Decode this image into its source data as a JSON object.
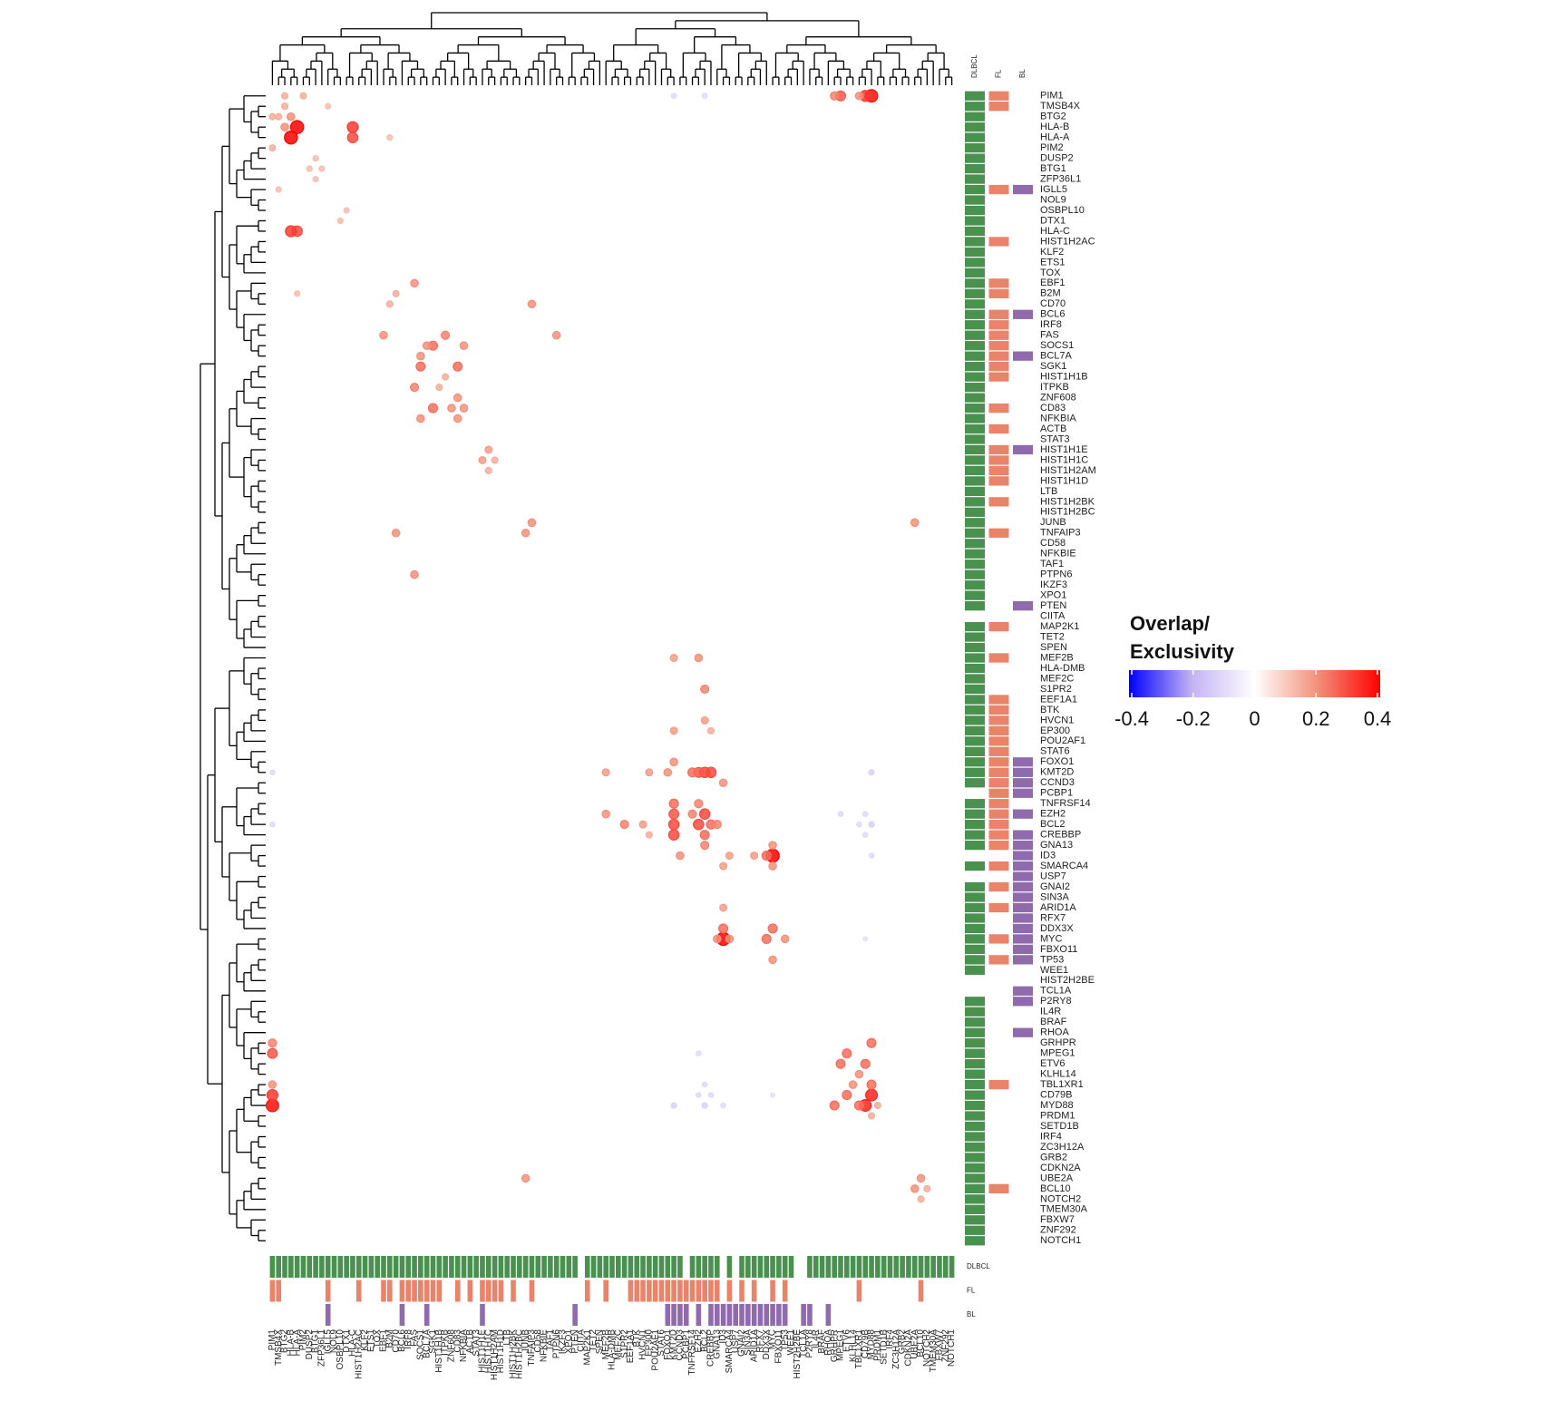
{
  "chart_data": {
    "type": "dotmatrix",
    "genes": [
      "PIM1",
      "TMSB4X",
      "BTG2",
      "HLA-B",
      "HLA-A",
      "PIM2",
      "DUSP2",
      "BTG1",
      "ZFP36L1",
      "IGLL5",
      "NOL9",
      "OSBPL10",
      "DTX1",
      "HLA-C",
      "HIST1H2AC",
      "KLF2",
      "ETS1",
      "TOX",
      "EBF1",
      "B2M",
      "CD70",
      "BCL6",
      "IRF8",
      "FAS",
      "SOCS1",
      "BCL7A",
      "SGK1",
      "HIST1H1B",
      "ITPKB",
      "ZNF608",
      "CD83",
      "NFKBIA",
      "ACTB",
      "STAT3",
      "HIST1H1E",
      "HIST1H1C",
      "HIST1H2AM",
      "HIST1H1D",
      "LTB",
      "HIST1H2BK",
      "HIST1H2BC",
      "JUNB",
      "TNFAIP3",
      "CD58",
      "NFKBIE",
      "TAF1",
      "PTPN6",
      "IKZF3",
      "XPO1",
      "PTEN",
      "CIITA",
      "MAP2K1",
      "TET2",
      "SPEN",
      "MEF2B",
      "HLA-DMB",
      "MEF2C",
      "S1PR2",
      "EEF1A1",
      "BTK",
      "HVCN1",
      "EP300",
      "POU2AF1",
      "STAT6",
      "FOXO1",
      "KMT2D",
      "CCND3",
      "PCBP1",
      "TNFRSF14",
      "EZH2",
      "BCL2",
      "CREBBP",
      "GNA13",
      "ID3",
      "SMARCA4",
      "USP7",
      "GNAI2",
      "SIN3A",
      "ARID1A",
      "RFX7",
      "DDX3X",
      "MYC",
      "FBXO11",
      "TP53",
      "WEE1",
      "HIST2H2BE",
      "TCL1A",
      "P2RY8",
      "IL4R",
      "BRAF",
      "RHOA",
      "GRHPR",
      "MPEG1",
      "ETV6",
      "KLHL14",
      "TBL1XR1",
      "CD79B",
      "MYD88",
      "PRDM1",
      "SETD1B",
      "IRF4",
      "ZC3H12A",
      "GRB2",
      "CDKN2A",
      "UBE2A",
      "BCL10",
      "NOTCH2",
      "TMEM30A",
      "FBXW7",
      "ZNF292",
      "NOTCH1"
    ],
    "cells": [
      {
        "row": "PIM1",
        "col": "MYD88",
        "value": 0.38
      },
      {
        "row": "PIM1",
        "col": "CD79B",
        "value": 0.32
      },
      {
        "row": "PIM1",
        "col": "MPEG1",
        "value": 0.28
      },
      {
        "row": "PIM1",
        "col": "GRHPR",
        "value": 0.22
      },
      {
        "row": "PIM1",
        "col": "TBL1XR1",
        "value": 0.2
      },
      {
        "row": "PIM1",
        "col": "PIM2",
        "value": 0.15
      },
      {
        "row": "PIM1",
        "col": "BTG2",
        "value": 0.15
      },
      {
        "row": "HLA-A",
        "col": "HLA-B",
        "value": 0.4
      },
      {
        "row": "HLA-A",
        "col": "HLA-C",
        "value": 0.3
      },
      {
        "row": "HLA-B",
        "col": "HLA-C",
        "value": 0.32
      },
      {
        "row": "HLA-B",
        "col": "BTG2",
        "value": 0.2
      },
      {
        "row": "HLA-A",
        "col": "B2M",
        "value": 0.12
      },
      {
        "row": "TMSB4X",
        "col": "BTG2",
        "value": 0.15
      },
      {
        "row": "DUSP2",
        "col": "BTG1",
        "value": 0.12
      },
      {
        "row": "BTG1",
        "col": "ZFP36L1",
        "value": 0.12
      },
      {
        "row": "IGLL5",
        "col": "TMSB4X",
        "value": 0.12
      },
      {
        "row": "OSBPL10",
        "col": "DTX1",
        "value": 0.12
      },
      {
        "row": "SOCS1",
        "col": "SGK1",
        "value": 0.25
      },
      {
        "row": "SOCS1",
        "col": "NFKBIA",
        "value": 0.2
      },
      {
        "row": "SGK1",
        "col": "CD83",
        "value": 0.25
      },
      {
        "row": "FAS",
        "col": "ITPKB",
        "value": 0.22
      },
      {
        "row": "CD83",
        "col": "NFKBIA",
        "value": 0.2
      },
      {
        "row": "HIST1H1E",
        "col": "HIST1H1C",
        "value": 0.18
      },
      {
        "row": "HIST1H1C",
        "col": "HIST1H2AM",
        "value": 0.15
      },
      {
        "row": "HIST1H1B",
        "col": "ITPKB",
        "value": 0.15
      },
      {
        "row": "SOCS1",
        "col": "BCL7A",
        "value": 0.2
      },
      {
        "row": "ZNF608",
        "col": "CD83",
        "value": 0.2
      },
      {
        "row": "JUNB",
        "col": "TNFAIP3",
        "value": 0.2
      },
      {
        "row": "TNFAIP3",
        "col": "CD70",
        "value": 0.2
      },
      {
        "row": "PTPN6",
        "col": "FAS",
        "value": 0.2
      },
      {
        "row": "CD70",
        "col": "B2M",
        "value": 0.15
      },
      {
        "row": "EBF1",
        "col": "FAS",
        "value": 0.2
      },
      {
        "row": "KMT2D",
        "col": "BCL2",
        "value": 0.3
      },
      {
        "row": "KMT2D",
        "col": "CREBBP",
        "value": 0.3
      },
      {
        "row": "KMT2D",
        "col": "EZH2",
        "value": 0.28
      },
      {
        "row": "KMT2D",
        "col": "TNFRSF14",
        "value": 0.25
      },
      {
        "row": "KMT2D",
        "col": "FOXO1",
        "value": 0.2
      },
      {
        "row": "BCL2",
        "col": "EZH2",
        "value": 0.3
      },
      {
        "row": "BCL2",
        "col": "CREBBP",
        "value": 0.25
      },
      {
        "row": "EZH2",
        "col": "TNFRSF14",
        "value": 0.22
      },
      {
        "row": "BCL2",
        "col": "S1PR2",
        "value": 0.22
      },
      {
        "row": "EZH2",
        "col": "MEF2B",
        "value": 0.2
      },
      {
        "row": "BCL2",
        "col": "GNA13",
        "value": 0.22
      },
      {
        "row": "KMT2D",
        "col": "MEF2B",
        "value": 0.18
      },
      {
        "row": "KMT2D",
        "col": "EP300",
        "value": 0.18
      },
      {
        "row": "CREBBP",
        "col": "EP300",
        "value": 0.15
      },
      {
        "row": "BCL2",
        "col": "HVCN1",
        "value": 0.18
      },
      {
        "row": "ID3",
        "col": "MYC",
        "value": 0.4
      },
      {
        "row": "ID3",
        "col": "CCND3",
        "value": 0.2
      },
      {
        "row": "ID3",
        "col": "DDX3X",
        "value": 0.25
      },
      {
        "row": "ID3",
        "col": "ARID1A",
        "value": 0.18
      },
      {
        "row": "MYC",
        "col": "DDX3X",
        "value": 0.25
      },
      {
        "row": "MYC",
        "col": "SMARCA4",
        "value": 0.2
      },
      {
        "row": "MYC",
        "col": "TP53",
        "value": 0.2
      },
      {
        "row": "ID3",
        "col": "SMARCA4",
        "value": 0.18
      },
      {
        "row": "MYC",
        "col": "GNA13",
        "value": 0.2
      },
      {
        "row": "MYD88",
        "col": "CD79B",
        "value": 0.35
      },
      {
        "row": "MYD88",
        "col": "TBL1XR1",
        "value": 0.25
      },
      {
        "row": "MPEG1",
        "col": "ETV6",
        "value": 0.25
      },
      {
        "row": "MYD88",
        "col": "GRHPR",
        "value": 0.25
      },
      {
        "row": "CD79B",
        "col": "ETV6",
        "value": 0.25
      },
      {
        "row": "KLHL14",
        "col": "TBL1XR1",
        "value": 0.2
      },
      {
        "row": "MYD88",
        "col": "PRDM1",
        "value": 0.15
      },
      {
        "row": "UBE2A",
        "col": "BCL10",
        "value": 0.2
      },
      {
        "row": "NOTCH2",
        "col": "BCL10",
        "value": 0.15
      },
      {
        "row": "UBE2A",
        "col": "JUNB",
        "value": 0.2
      },
      {
        "row": "MYD88",
        "col": "BCL2",
        "value": -0.12
      },
      {
        "row": "CD79B",
        "col": "EZH2",
        "value": -0.1
      },
      {
        "row": "MYD88",
        "col": "KMT2D",
        "value": -0.12
      },
      {
        "row": "CD79B",
        "col": "CREBBP",
        "value": -0.1
      },
      {
        "row": "BCL2",
        "col": "PIM1",
        "value": -0.1
      },
      {
        "row": "EZH2",
        "col": "MPEG1",
        "value": -0.1
      },
      {
        "row": "MYC",
        "col": "CD79B",
        "value": -0.08
      },
      {
        "row": "ID3",
        "col": "MYD88",
        "value": -0.1
      },
      {
        "row": "BCL2",
        "col": "TBL1XR1",
        "value": -0.1
      },
      {
        "row": "PIM1",
        "col": "KMT2D",
        "value": -0.1
      }
    ],
    "annotations": [
      {
        "name": "DLBCL",
        "color": "#4a9150",
        "genes": [
          "PIM1",
          "TMSB4X",
          "BTG2",
          "HLA-B",
          "HLA-A",
          "PIM2",
          "DUSP2",
          "BTG1",
          "ZFP36L1",
          "IGLL5",
          "NOL9",
          "OSBPL10",
          "DTX1",
          "HLA-C",
          "HIST1H2AC",
          "KLF2",
          "ETS1",
          "TOX",
          "EBF1",
          "B2M",
          "CD70",
          "BCL6",
          "IRF8",
          "FAS",
          "SOCS1",
          "BCL7A",
          "SGK1",
          "HIST1H1B",
          "ITPKB",
          "ZNF608",
          "CD83",
          "NFKBIA",
          "ACTB",
          "STAT3",
          "HIST1H1E",
          "HIST1H1C",
          "HIST1H2AM",
          "HIST1H1D",
          "LTB",
          "HIST1H2BK",
          "HIST1H2BC",
          "JUNB",
          "TNFAIP3",
          "CD58",
          "NFKBIE",
          "TAF1",
          "PTPN6",
          "IKZF3",
          "XPO1",
          "PTEN",
          "MAP2K1",
          "TET2",
          "SPEN",
          "MEF2B",
          "HLA-DMB",
          "MEF2C",
          "S1PR2",
          "EEF1A1",
          "BTK",
          "HVCN1",
          "EP300",
          "POU2AF1",
          "STAT6",
          "FOXO1",
          "KMT2D",
          "CCND3",
          "TNFRSF14",
          "EZH2",
          "BCL2",
          "CREBBP",
          "GNA13",
          "SMARCA4",
          "GNAI2",
          "SIN3A",
          "ARID1A",
          "RFX7",
          "DDX3X",
          "MYC",
          "FBXO11",
          "TP53",
          "WEE1",
          "P2RY8",
          "IL4R",
          "BRAF",
          "RHOA",
          "GRHPR",
          "MPEG1",
          "ETV6",
          "KLHL14",
          "TBL1XR1",
          "CD79B",
          "MYD88",
          "PRDM1",
          "SETD1B",
          "IRF4",
          "ZC3H12A",
          "GRB2",
          "CDKN2A",
          "UBE2A",
          "BCL10",
          "NOTCH2",
          "TMEM30A",
          "FBXW7",
          "ZNF292",
          "NOTCH1"
        ]
      },
      {
        "name": "FL",
        "color": "#e9836a",
        "genes": [
          "PIM1",
          "TMSB4X",
          "IGLL5",
          "HIST1H2AC",
          "EBF1",
          "B2M",
          "BCL6",
          "IRF8",
          "FAS",
          "SOCS1",
          "BCL7A",
          "SGK1",
          "HIST1H1B",
          "CD83",
          "ACTB",
          "HIST1H1E",
          "HIST1H1C",
          "HIST1H2AM",
          "HIST1H1D",
          "HIST1H2BK",
          "TNFAIP3",
          "MAP2K1",
          "MEF2B",
          "EEF1A1",
          "BTK",
          "HVCN1",
          "EP300",
          "POU2AF1",
          "STAT6",
          "FOXO1",
          "KMT2D",
          "CCND3",
          "PCBP1",
          "TNFRSF14",
          "EZH2",
          "BCL2",
          "CREBBP",
          "GNA13",
          "SMARCA4",
          "GNAI2",
          "ARID1A",
          "MYC",
          "TP53",
          "TBL1XR1",
          "BCL10"
        ]
      },
      {
        "name": "BL",
        "color": "#8f6bae",
        "genes": [
          "IGLL5",
          "BCL6",
          "BCL7A",
          "HIST1H1E",
          "PTEN",
          "FOXO1",
          "KMT2D",
          "CCND3",
          "PCBP1",
          "EZH2",
          "CREBBP",
          "GNA13",
          "ID3",
          "SMARCA4",
          "USP7",
          "GNAI2",
          "SIN3A",
          "ARID1A",
          "RFX7",
          "DDX3X",
          "MYC",
          "FBXO11",
          "TP53",
          "TCL1A",
          "P2RY8",
          "RHOA"
        ]
      }
    ],
    "legend": {
      "title": [
        "Overlap/",
        "Exclusivity"
      ],
      "clim": [
        -0.4,
        0.4
      ],
      "ticks": [
        -0.4,
        -0.2,
        0,
        0.2,
        0.4
      ],
      "colors": [
        "#0000ff",
        "#c4b2f4",
        "#ffffff",
        "#f2917a",
        "#ff0000"
      ]
    }
  }
}
